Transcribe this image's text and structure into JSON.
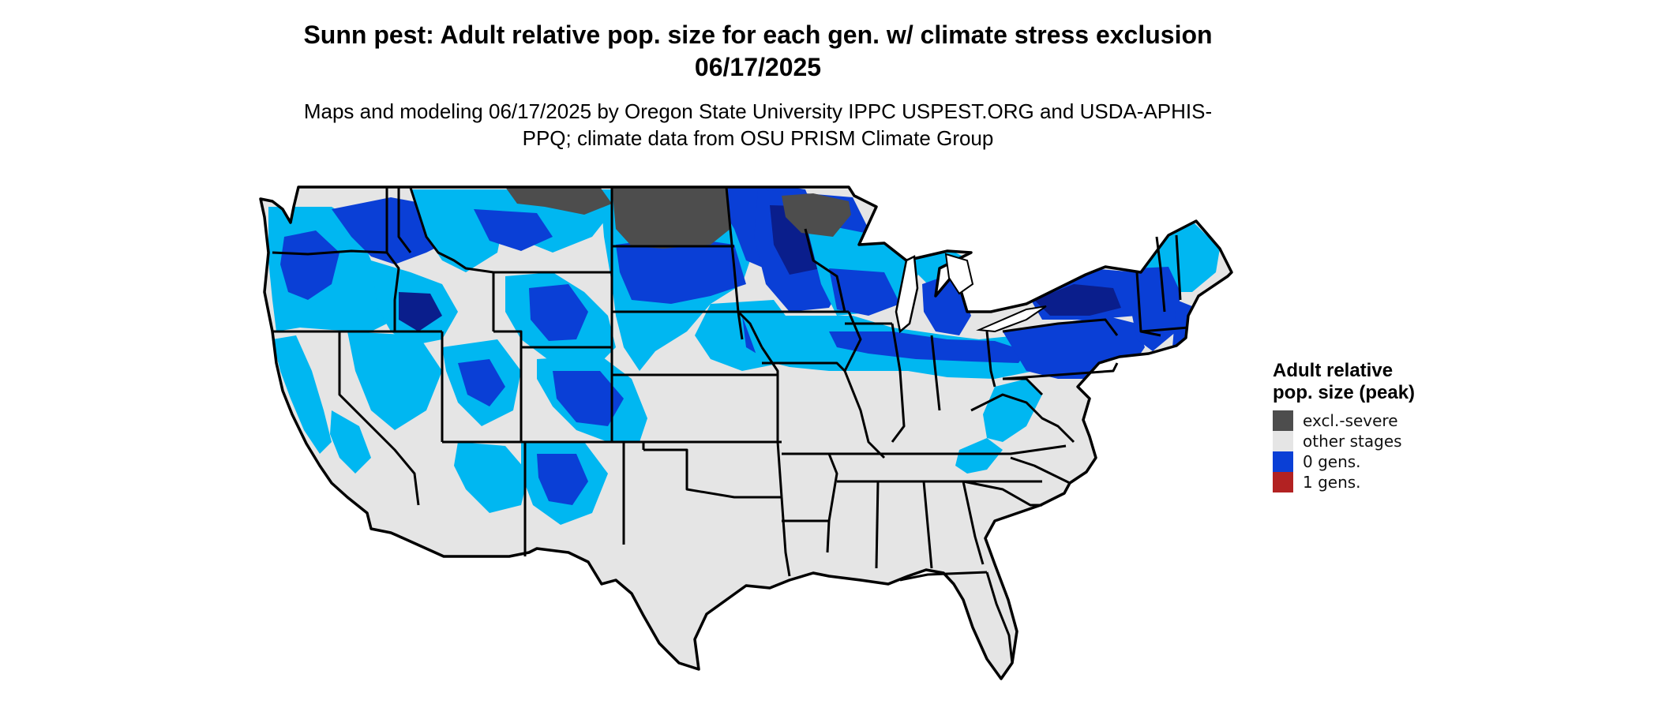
{
  "title": "Sunn pest: Adult relative pop. size for each gen. w/ climate stress exclusion 06/17/2025",
  "subtitle": "Maps and modeling 06/17/2025 by Oregon State University IPPC USPEST.ORG and USDA-APHIS-PPQ; climate data from OSU PRISM Climate Group",
  "legend": {
    "title": "Adult relative pop. size (peak)",
    "items": [
      {
        "label": "excl.-severe",
        "color": "#4d4d4d"
      },
      {
        "label": "other stages",
        "color": "#e5e5e5"
      },
      {
        "label": "0 gens.",
        "color": "#0a3fd6"
      },
      {
        "label": "1 gens.",
        "color": "#b22222"
      }
    ]
  },
  "colors": {
    "land": "#e5e5e5",
    "excluded": "#4d4d4d",
    "light_blue": "#00b7f1",
    "dark_blue": "#0a3fd6",
    "navy": "#0a1e8c",
    "border": "#000000"
  }
}
